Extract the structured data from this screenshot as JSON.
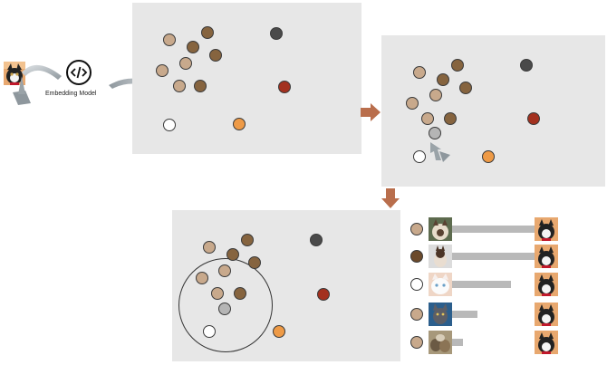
{
  "pipeline": {
    "model_label": "Embedding Model"
  },
  "colors": {
    "panel_bg": "#e7e7e7",
    "tan": "#c8a98c",
    "brown_mid": "#86643f",
    "brown_dark": "#6b4a2b",
    "dark_gray": "#4a4a4a",
    "red": "#a3311f",
    "orange": "#ee9a46",
    "white": "#ffffff",
    "query_gray": "#b5b5b5",
    "arrow": "#b96e4c"
  },
  "results": [
    {
      "dot_color": "tan",
      "cat": "siamese-a",
      "similarity": 0.92
    },
    {
      "dot_color": "brown_dark",
      "cat": "siamese-b",
      "similarity": 0.92
    },
    {
      "dot_color": "white",
      "cat": "white-cat",
      "similarity": 0.52
    },
    {
      "dot_color": "tan",
      "cat": "blue-cat",
      "similarity": 0.22
    },
    {
      "dot_color": "tan",
      "cat": "kittens",
      "similarity": 0.13
    }
  ]
}
